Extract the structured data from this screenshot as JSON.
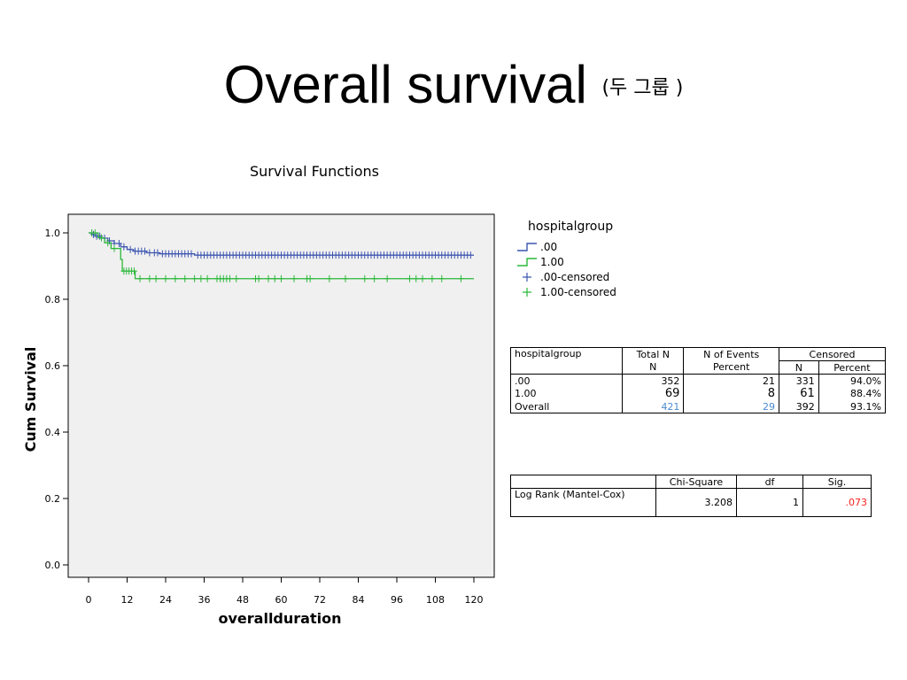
{
  "slide": {
    "title": "Overall survival",
    "subtitle": "(두 그룹 )"
  },
  "chart_data": {
    "type": "line",
    "title": "Survival Functions",
    "xlabel": "overallduration",
    "ylabel": "Cum Survival",
    "xlim": [
      0,
      120
    ],
    "ylim": [
      0.0,
      1.0
    ],
    "xticks": [
      "0",
      "12",
      "24",
      "36",
      "48",
      "60",
      "72",
      "84",
      "96",
      "108",
      "120"
    ],
    "yticks": [
      "0.0",
      "0.2",
      "0.4",
      "0.6",
      "0.8",
      "1.0"
    ],
    "step": true,
    "legend_title": "hospitalgroup",
    "legend_placement": "right",
    "legend": [
      ".00",
      "1.00",
      ".00-censored",
      "1.00-censored"
    ],
    "series": [
      {
        "name": ".00",
        "color": "#3c55b0",
        "steps": [
          [
            0,
            1.0
          ],
          [
            1,
            0.995
          ],
          [
            2,
            0.99
          ],
          [
            4,
            0.984
          ],
          [
            6,
            0.976
          ],
          [
            8,
            0.968
          ],
          [
            10,
            0.958
          ],
          [
            12,
            0.95
          ],
          [
            14,
            0.945
          ],
          [
            18,
            0.94
          ],
          [
            22,
            0.937
          ],
          [
            33,
            0.933
          ],
          [
            120,
            0.933
          ]
        ],
        "censored": [
          1.5,
          2.5,
          3.5,
          5,
          6.5,
          8,
          9.5,
          11,
          13,
          14.5,
          15.5,
          16.5,
          17.5,
          19,
          20.5,
          21.5,
          23,
          24,
          25,
          26,
          27,
          28,
          29,
          30,
          31,
          32,
          34,
          35,
          36,
          37,
          38,
          39,
          40,
          41,
          42,
          43,
          44,
          45,
          46,
          47,
          48,
          49,
          50,
          51,
          52,
          53,
          54,
          55,
          56,
          57,
          58,
          59,
          60,
          61,
          62,
          63,
          64,
          65,
          66,
          67,
          68,
          69,
          70,
          71,
          72,
          73,
          74,
          75,
          76,
          77,
          78,
          79,
          80,
          81,
          82,
          83,
          84,
          85,
          86,
          87,
          88,
          89,
          90,
          91,
          92,
          93,
          94,
          95,
          96,
          97,
          98,
          99,
          100,
          101,
          102,
          103,
          104,
          105,
          106,
          107,
          108,
          109,
          110,
          111,
          112,
          113,
          114,
          115,
          116,
          117,
          118,
          119
        ]
      },
      {
        "name": "1.00",
        "color": "#2bb83a",
        "steps": [
          [
            0,
            1.0
          ],
          [
            3,
            0.985
          ],
          [
            5,
            0.97
          ],
          [
            7,
            0.953
          ],
          [
            10,
            0.92
          ],
          [
            10.5,
            0.885
          ],
          [
            14.5,
            0.862
          ],
          [
            120,
            0.862
          ]
        ],
        "censored": [
          1,
          2,
          4,
          6,
          8,
          11,
          11.8,
          12.6,
          13.4,
          14.2,
          16,
          19,
          21,
          24,
          27,
          30,
          33,
          35,
          37,
          40,
          41,
          42,
          43,
          44,
          46,
          52,
          53,
          56,
          58,
          60,
          64,
          68,
          69,
          75,
          80,
          86,
          89,
          93,
          100,
          102,
          104,
          107,
          110,
          116
        ]
      }
    ]
  },
  "case_summary": {
    "headers": [
      "hospitalgroup",
      "Total N",
      "N of Events",
      "Censored"
    ],
    "subheaders": [
      "N",
      "Percent"
    ],
    "rows": [
      {
        "group": ".00",
        "total": "352",
        "events": "21",
        "cens_n": "331",
        "cens_pct": "94.0%"
      },
      {
        "group": "1.00",
        "total": "69",
        "events": "8",
        "cens_n": "61",
        "cens_pct": "88.4%"
      },
      {
        "group": "Overall",
        "total": "421",
        "events": "29",
        "cens_n": "392",
        "cens_pct": "93.1%"
      }
    ]
  },
  "logrank": {
    "headers": [
      "Chi-Square",
      "df",
      "Sig."
    ],
    "test": "Log Rank (Mantel-Cox)",
    "chi_square": "3.208",
    "df": "1",
    "sig": ".073"
  }
}
